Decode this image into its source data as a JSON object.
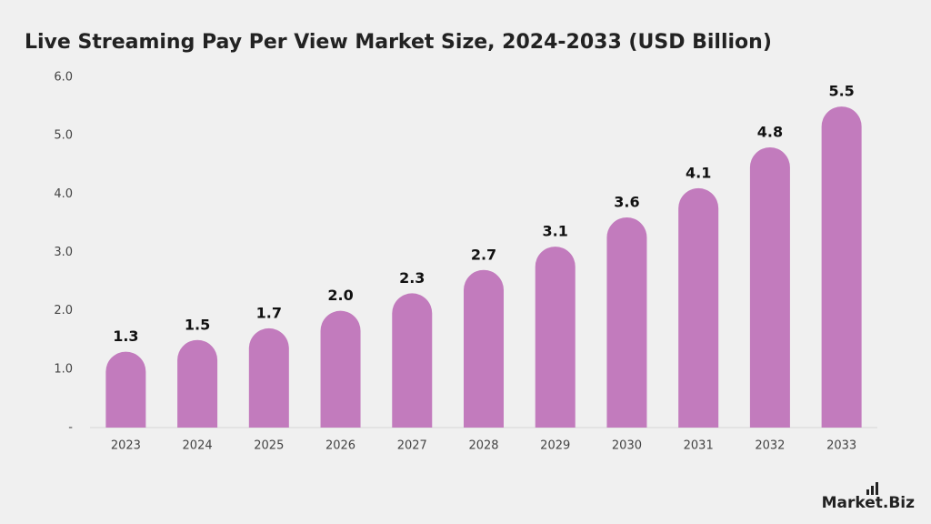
{
  "chart_data": {
    "type": "bar",
    "title": "Live Streaming Pay Per View Market Size, 2024-2033 (USD Billion)",
    "categories": [
      "2023",
      "2024",
      "2025",
      "2026",
      "2027",
      "2028",
      "2029",
      "2030",
      "2031",
      "2032",
      "2033"
    ],
    "values": [
      1.3,
      1.5,
      1.7,
      2.0,
      2.3,
      2.7,
      3.1,
      3.6,
      4.1,
      4.8,
      5.5
    ],
    "value_labels": [
      "1.3",
      "1.5",
      "1.7",
      "2.0",
      "2.3",
      "2.7",
      "3.1",
      "3.6",
      "4.1",
      "4.8",
      "5.5"
    ],
    "color": "#c27bbd",
    "ylim": [
      0,
      6
    ],
    "yticks": [
      {
        "value": 0,
        "label": "-"
      },
      {
        "value": 1,
        "label": "1.0"
      },
      {
        "value": 2,
        "label": "2.0"
      },
      {
        "value": 3,
        "label": "3.0"
      },
      {
        "value": 4,
        "label": "4.0"
      },
      {
        "value": 5,
        "label": "5.0"
      },
      {
        "value": 6,
        "label": "6.0"
      }
    ],
    "grid": false
  },
  "brand": "Market.Biz"
}
